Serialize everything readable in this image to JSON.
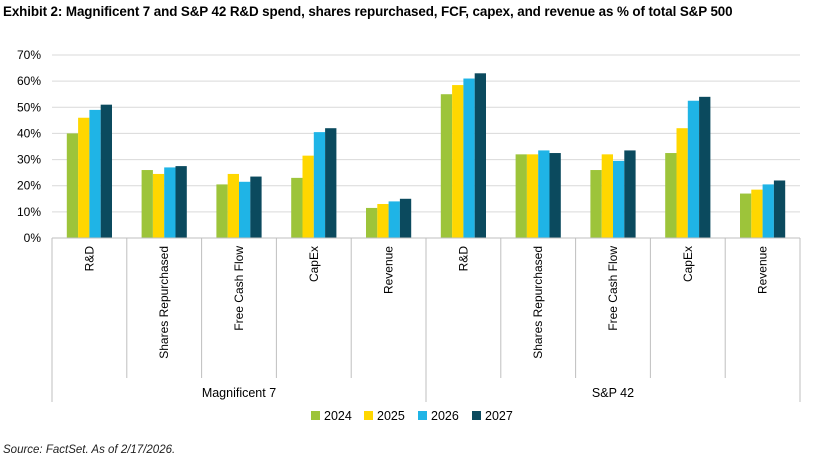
{
  "chart_data": {
    "type": "bar",
    "title": "Exhibit 2: Magnificent 7 and S&P 42 R&D spend, shares repurchased, FCF, capex, and revenue as % of total S&P 500",
    "source": "Source: FactSet. As of 2/17/2026.",
    "ylim": [
      0,
      70
    ],
    "yticks": [
      "0%",
      "10%",
      "20%",
      "30%",
      "40%",
      "50%",
      "60%",
      "70%"
    ],
    "grid": true,
    "legend_position": "bottom",
    "groups": [
      {
        "name": "Magnificent 7",
        "categories": [
          "R&D",
          "Shares Repurchased",
          "Free Cash Flow",
          "CapEx",
          "Revenue"
        ]
      },
      {
        "name": "S&P 42",
        "categories": [
          "R&D",
          "Shares Repurchased",
          "Free Cash Flow",
          "CapEx",
          "Revenue"
        ]
      }
    ],
    "series": [
      {
        "name": "2024",
        "color": "#9DC43A",
        "values": [
          40,
          26,
          20.5,
          23,
          11.5,
          55,
          32,
          26,
          32.5,
          17
        ]
      },
      {
        "name": "2025",
        "color": "#FFD700",
        "values": [
          46,
          24.5,
          24.5,
          31.5,
          13,
          58.5,
          32,
          32,
          42,
          18.5
        ]
      },
      {
        "name": "2026",
        "color": "#1FB4E6",
        "values": [
          49,
          27,
          21.5,
          40.5,
          14,
          61,
          33.5,
          29.5,
          52.5,
          20.5
        ]
      },
      {
        "name": "2027",
        "color": "#0B4A5E",
        "values": [
          51,
          27.5,
          23.5,
          42,
          15,
          63,
          32.5,
          33.5,
          54,
          22
        ]
      }
    ]
  }
}
